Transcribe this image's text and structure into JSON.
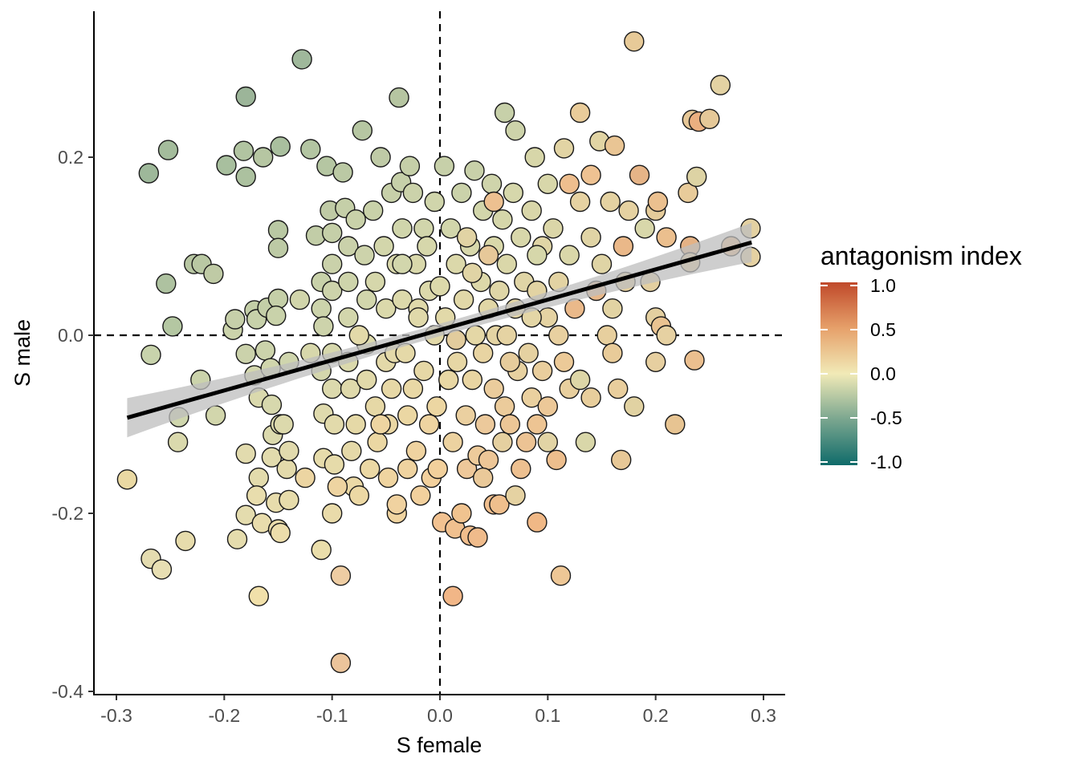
{
  "chart_data": {
    "type": "scatter",
    "title": "",
    "xlabel": "S female",
    "ylabel": "S male",
    "xlim": [
      -0.32,
      0.32
    ],
    "ylim": [
      -0.4,
      0.36
    ],
    "x_ticks": [
      "-0.3",
      "-0.2",
      "-0.1",
      "0.0",
      "0.1",
      "0.2",
      "0.3"
    ],
    "y_ticks": [
      "-0.4",
      "-0.2",
      "0.0",
      "0.2"
    ],
    "reference_lines": {
      "x": 0,
      "y": 0,
      "style": "dashed"
    },
    "grid": false,
    "regression": {
      "x_range": [
        -0.29,
        0.289
      ],
      "intercept": 0.006,
      "slope": 0.34,
      "ci_halfwidth_at_edges": 0.022,
      "ci_halfwidth_at_center": 0.007,
      "line_color": "#000000",
      "band_color": "#bebebe"
    },
    "colorbar": {
      "title": "antagonism index",
      "range": [
        -1.0,
        1.0
      ],
      "ticks": [
        "1.0",
        "0.5",
        "0.0",
        "-0.5",
        "-1.0"
      ],
      "stops": [
        {
          "v": -1.0,
          "color": "#0f6b6a"
        },
        {
          "v": -0.5,
          "color": "#7aa68f"
        },
        {
          "v": 0.0,
          "color": "#f1eab7"
        },
        {
          "v": 0.5,
          "color": "#e6a06a"
        },
        {
          "v": 1.0,
          "color": "#c0492a"
        }
      ],
      "placement": "right"
    },
    "points": [
      [
        -0.29,
        -0.162
      ],
      [
        -0.27,
        0.182
      ],
      [
        -0.268,
        -0.022
      ],
      [
        -0.268,
        -0.251
      ],
      [
        -0.258,
        -0.263
      ],
      [
        -0.252,
        0.208
      ],
      [
        -0.254,
        0.058
      ],
      [
        -0.248,
        0.01
      ],
      [
        -0.242,
        -0.092
      ],
      [
        -0.243,
        -0.12
      ],
      [
        -0.236,
        -0.231
      ],
      [
        -0.228,
        0.08
      ],
      [
        -0.221,
        0.08
      ],
      [
        -0.222,
        -0.05
      ],
      [
        -0.21,
        0.069
      ],
      [
        -0.208,
        -0.09
      ],
      [
        -0.198,
        0.191
      ],
      [
        -0.192,
        0.006
      ],
      [
        -0.19,
        0.018
      ],
      [
        -0.188,
        -0.229
      ],
      [
        -0.18,
        0.178
      ],
      [
        -0.18,
        0.268
      ],
      [
        -0.182,
        0.207
      ],
      [
        -0.18,
        -0.021
      ],
      [
        -0.18,
        -0.202
      ],
      [
        -0.18,
        -0.133
      ],
      [
        -0.172,
        0.028
      ],
      [
        -0.17,
        0.018
      ],
      [
        -0.172,
        -0.045
      ],
      [
        -0.168,
        -0.07
      ],
      [
        -0.168,
        -0.16
      ],
      [
        -0.17,
        -0.18
      ],
      [
        -0.168,
        -0.293
      ],
      [
        -0.164,
        0.2
      ],
      [
        -0.165,
        -0.211
      ],
      [
        -0.162,
        -0.017
      ],
      [
        -0.16,
        0.031
      ],
      [
        -0.157,
        -0.037
      ],
      [
        -0.156,
        -0.137
      ],
      [
        -0.156,
        -0.078
      ],
      [
        -0.155,
        -0.112
      ],
      [
        -0.148,
        0.212
      ],
      [
        -0.15,
        0.118
      ],
      [
        -0.15,
        0.098
      ],
      [
        -0.15,
        0.041
      ],
      [
        -0.152,
        0.022
      ],
      [
        -0.148,
        -0.1
      ],
      [
        -0.152,
        -0.188
      ],
      [
        -0.15,
        -0.218
      ],
      [
        -0.148,
        -0.222
      ],
      [
        -0.145,
        -0.1
      ],
      [
        -0.14,
        -0.185
      ],
      [
        -0.14,
        -0.03
      ],
      [
        -0.142,
        -0.15
      ],
      [
        -0.14,
        -0.13
      ],
      [
        -0.128,
        0.31
      ],
      [
        -0.12,
        0.209
      ],
      [
        -0.115,
        0.112
      ],
      [
        -0.11,
        0.06
      ],
      [
        -0.11,
        0.03
      ],
      [
        -0.11,
        -0.04
      ],
      [
        -0.108,
        -0.138
      ],
      [
        -0.11,
        -0.241
      ],
      [
        -0.108,
        0.01
      ],
      [
        -0.108,
        -0.088
      ],
      [
        -0.105,
        0.19
      ],
      [
        -0.102,
        0.14
      ],
      [
        -0.1,
        0.115
      ],
      [
        -0.1,
        0.08
      ],
      [
        -0.1,
        0.05
      ],
      [
        -0.1,
        -0.02
      ],
      [
        -0.1,
        -0.06
      ],
      [
        -0.098,
        -0.1
      ],
      [
        -0.098,
        -0.145
      ],
      [
        -0.1,
        -0.2
      ],
      [
        -0.092,
        -0.27
      ],
      [
        -0.092,
        -0.368
      ],
      [
        -0.09,
        0.183
      ],
      [
        -0.088,
        0.143
      ],
      [
        -0.085,
        0.1
      ],
      [
        -0.085,
        0.06
      ],
      [
        -0.085,
        0.02
      ],
      [
        -0.085,
        -0.03
      ],
      [
        -0.083,
        -0.06
      ],
      [
        -0.082,
        -0.13
      ],
      [
        -0.08,
        -0.17
      ],
      [
        -0.078,
        0.13
      ],
      [
        -0.078,
        -0.1
      ],
      [
        -0.075,
        -0.18
      ],
      [
        -0.072,
        0.23
      ],
      [
        -0.07,
        0.09
      ],
      [
        -0.068,
        0.04
      ],
      [
        -0.068,
        -0.01
      ],
      [
        -0.068,
        -0.05
      ],
      [
        -0.065,
        -0.15
      ],
      [
        -0.062,
        0.14
      ],
      [
        -0.06,
        0.06
      ],
      [
        -0.06,
        -0.08
      ],
      [
        -0.058,
        -0.12
      ],
      [
        -0.055,
        0.2
      ],
      [
        -0.052,
        0.1
      ],
      [
        -0.05,
        0.03
      ],
      [
        -0.05,
        -0.03
      ],
      [
        -0.048,
        -0.1
      ],
      [
        -0.048,
        -0.16
      ],
      [
        -0.045,
        0.16
      ],
      [
        -0.045,
        -0.06
      ],
      [
        -0.042,
        -0.02
      ],
      [
        -0.04,
        0.08
      ],
      [
        -0.04,
        -0.2
      ],
      [
        -0.04,
        -0.19
      ],
      [
        -0.038,
        0.267
      ],
      [
        -0.036,
        0.172
      ],
      [
        -0.035,
        0.12
      ],
      [
        -0.035,
        0.04
      ],
      [
        -0.032,
        -0.02
      ],
      [
        -0.03,
        -0.09
      ],
      [
        -0.03,
        -0.15
      ],
      [
        -0.028,
        0.19
      ],
      [
        -0.025,
        0.16
      ],
      [
        -0.025,
        -0.06
      ],
      [
        -0.022,
        0.08
      ],
      [
        -0.022,
        -0.13
      ],
      [
        -0.02,
        0.03
      ],
      [
        -0.018,
        -0.18
      ],
      [
        -0.015,
        0.12
      ],
      [
        -0.015,
        -0.04
      ],
      [
        -0.012,
        0.1
      ],
      [
        -0.01,
        0.05
      ],
      [
        -0.01,
        -0.1
      ],
      [
        -0.008,
        -0.16
      ],
      [
        -0.005,
        0.0
      ],
      [
        -0.005,
        0.15
      ],
      [
        -0.003,
        -0.08
      ],
      [
        -0.002,
        -0.15
      ],
      [
        -0.12,
        -0.02
      ],
      [
        -0.13,
        0.04
      ],
      [
        -0.125,
        -0.16
      ],
      [
        -0.095,
        -0.17
      ],
      [
        -0.075,
        0.0
      ],
      [
        -0.055,
        -0.1
      ],
      [
        -0.02,
        0.02
      ],
      [
        -0.035,
        0.08
      ],
      [
        0.0,
        0.055
      ],
      [
        0.002,
        -0.21
      ],
      [
        0.004,
        0.19
      ],
      [
        0.005,
        0.02
      ],
      [
        0.008,
        -0.05
      ],
      [
        0.01,
        0.12
      ],
      [
        0.012,
        -0.293
      ],
      [
        0.012,
        -0.12
      ],
      [
        0.014,
        -0.217
      ],
      [
        0.015,
        0.08
      ],
      [
        0.016,
        -0.03
      ],
      [
        0.02,
        0.16
      ],
      [
        0.02,
        -0.2
      ],
      [
        0.022,
        0.04
      ],
      [
        0.024,
        -0.09
      ],
      [
        0.025,
        -0.15
      ],
      [
        0.028,
        0.1
      ],
      [
        0.028,
        -0.225
      ],
      [
        0.03,
        -0.05
      ],
      [
        0.032,
        0.185
      ],
      [
        0.033,
        0.0
      ],
      [
        0.035,
        -0.135
      ],
      [
        0.035,
        -0.227
      ],
      [
        0.038,
        0.06
      ],
      [
        0.04,
        0.14
      ],
      [
        0.04,
        -0.02
      ],
      [
        0.042,
        -0.1
      ],
      [
        0.045,
        0.03
      ],
      [
        0.045,
        -0.14
      ],
      [
        0.048,
        0.17
      ],
      [
        0.05,
        -0.06
      ],
      [
        0.05,
        0.1
      ],
      [
        0.05,
        -0.19
      ],
      [
        0.052,
        0.0
      ],
      [
        0.055,
        0.05
      ],
      [
        0.055,
        -0.19
      ],
      [
        0.058,
        0.13
      ],
      [
        0.06,
        -0.08
      ],
      [
        0.06,
        0.25
      ],
      [
        0.062,
        0.0
      ],
      [
        0.062,
        0.08
      ],
      [
        0.065,
        -0.1
      ],
      [
        0.068,
        0.16
      ],
      [
        0.07,
        0.23
      ],
      [
        0.07,
        0.03
      ],
      [
        0.072,
        -0.04
      ],
      [
        0.075,
        0.11
      ],
      [
        0.075,
        -0.15
      ],
      [
        0.078,
        0.06
      ],
      [
        0.08,
        -0.12
      ],
      [
        0.082,
        -0.02
      ],
      [
        0.085,
        0.14
      ],
      [
        0.085,
        -0.07
      ],
      [
        0.088,
        0.2
      ],
      [
        0.09,
        0.05
      ],
      [
        0.09,
        -0.1
      ],
      [
        0.09,
        -0.21
      ],
      [
        0.095,
        0.1
      ],
      [
        0.095,
        -0.04
      ],
      [
        0.1,
        0.17
      ],
      [
        0.1,
        0.02
      ],
      [
        0.1,
        -0.08
      ],
      [
        0.105,
        0.12
      ],
      [
        0.108,
        -0.14
      ],
      [
        0.11,
        0.06
      ],
      [
        0.11,
        0.0
      ],
      [
        0.112,
        -0.27
      ],
      [
        0.115,
        0.21
      ],
      [
        0.115,
        -0.03
      ],
      [
        0.12,
        0.09
      ],
      [
        0.12,
        -0.06
      ],
      [
        0.125,
        0.03
      ],
      [
        0.13,
        0.15
      ],
      [
        0.13,
        0.25
      ],
      [
        0.13,
        -0.05
      ],
      [
        0.135,
        -0.12
      ],
      [
        0.14,
        0.11
      ],
      [
        0.14,
        -0.07
      ],
      [
        0.145,
        0.05
      ],
      [
        0.148,
        0.218
      ],
      [
        0.15,
        0.08
      ],
      [
        0.155,
        0.0
      ],
      [
        0.158,
        0.15
      ],
      [
        0.16,
        -0.02
      ],
      [
        0.16,
        0.03
      ],
      [
        0.162,
        0.213
      ],
      [
        0.165,
        -0.06
      ],
      [
        0.168,
        -0.14
      ],
      [
        0.17,
        0.1
      ],
      [
        0.172,
        0.06
      ],
      [
        0.175,
        0.14
      ],
      [
        0.18,
        -0.08
      ],
      [
        0.18,
        0.33
      ],
      [
        0.185,
        0.18
      ],
      [
        0.19,
        0.12
      ],
      [
        0.195,
        0.06
      ],
      [
        0.2,
        0.14
      ],
      [
        0.2,
        0.02
      ],
      [
        0.2,
        -0.03
      ],
      [
        0.202,
        0.15
      ],
      [
        0.205,
        0.01
      ],
      [
        0.21,
        0.0
      ],
      [
        0.21,
        0.11
      ],
      [
        0.218,
        -0.1
      ],
      [
        0.23,
        0.16
      ],
      [
        0.232,
        0.1
      ],
      [
        0.232,
        0.082
      ],
      [
        0.234,
        0.242
      ],
      [
        0.236,
        -0.028
      ],
      [
        0.238,
        0.178
      ],
      [
        0.24,
        0.24
      ],
      [
        0.25,
        0.243
      ],
      [
        0.26,
        0.281
      ],
      [
        0.27,
        0.1
      ],
      [
        0.288,
        0.12
      ],
      [
        0.288,
        0.088
      ],
      [
        0.015,
        -0.005
      ],
      [
        0.045,
        0.09
      ],
      [
        0.065,
        -0.03
      ],
      [
        0.085,
        0.02
      ],
      [
        0.025,
        0.11
      ],
      [
        0.04,
        -0.16
      ],
      [
        0.07,
        -0.18
      ],
      [
        0.1,
        -0.12
      ],
      [
        0.12,
        0.17
      ],
      [
        0.14,
        0.18
      ],
      [
        0.05,
        0.15
      ],
      [
        0.03,
        0.07
      ],
      [
        0.058,
        -0.12
      ],
      [
        0.09,
        0.09
      ]
    ],
    "colors": [
      "#ead9a3",
      "#9eb89a",
      "#c8d3ac",
      "#e4dcb0",
      "#e8dfb3",
      "#a4bc9c",
      "#aec2a0",
      "#b4c7a2",
      "#cfd6ad",
      "#dad9ad",
      "#e7dcac",
      "#b7c6a2",
      "#b9c8a3",
      "#cbd3ab",
      "#bfcaa5",
      "#d2d6ac",
      "#a8bf9e",
      "#cbd3ab",
      "#c6cfa9",
      "#e5dcad",
      "#acc19f",
      "#9cb599",
      "#b1c4a1",
      "#cbd2ab",
      "#e4dcae",
      "#e2dbae",
      "#c3cea7",
      "#c7d1aa",
      "#d3d7ad",
      "#dad9ad",
      "#e3dbac",
      "#e8ddad",
      "#f1e0aa",
      "#b6c6a2",
      "#e8dcac",
      "#ccd3ab",
      "#c3cea7",
      "#d0d5ac",
      "#e2dbad",
      "#d7d8ad",
      "#dbd9ad",
      "#a9bf9e",
      "#b9c8a3",
      "#bdcaa5",
      "#c5cfa8",
      "#c9d2aa",
      "#dbd9ad",
      "#e7dcac",
      "#eadcab",
      "#ecddab",
      "#dcd9ac",
      "#e7dcab",
      "#cfd5ad",
      "#e3daab",
      "#e1daad",
      "#9fb89b",
      "#b3c5a2",
      "#c2cda7",
      "#c8d1a9",
      "#ccd3ab",
      "#d4d6ac",
      "#e6dcab",
      "#eadeab",
      "#cdd3ab",
      "#dfdaad",
      "#b5c6a2",
      "#bfcaa5",
      "#c5cfa8",
      "#cad1aa",
      "#cdd3ab",
      "#d6d7ac",
      "#dcd9ad",
      "#e2daab",
      "#e6dbaa",
      "#e9dbaa",
      "#eecda3",
      "#ebc49b",
      "#bbc9a4",
      "#c5cfa8",
      "#cad1aa",
      "#ced4ab",
      "#d3d6ac",
      "#dbd9ac",
      "#dfd9ab",
      "#e5d9a8",
      "#ebd9a6",
      "#c9d1a9",
      "#e5d9a7",
      "#ecd8a4",
      "#b6c6a2",
      "#cdd3ab",
      "#d2d6ac",
      "#dbd9ab",
      "#e1d9aa",
      "#ebd8a4",
      "#c9d1a9",
      "#d6d7ab",
      "#e6d8a6",
      "#ebd7a3",
      "#bfcaa6",
      "#d3d6ab",
      "#dbd9ab",
      "#e3d9a9",
      "#ead7a4",
      "#efd4a0",
      "#c7d0a9",
      "#e7d8a6",
      "#e3d9aa",
      "#d9d8ab",
      "#f0d4a0",
      "#f0d2a0",
      "#b6c5a1",
      "#c6d0a9",
      "#d0d5ab",
      "#dcd9ab",
      "#e5d9a8",
      "#ebd7a3",
      "#efd3a0",
      "#c5cfa8",
      "#cbd2aa",
      "#e9d8a5",
      "#d9d8ab",
      "#efd3a0",
      "#dfd9aa",
      "#f2d09d",
      "#d1d5ab",
      "#e6d8a6",
      "#d6d7ab",
      "#dcd9ab",
      "#eed4a1",
      "#f2d09d",
      "#e2d9a9",
      "#d0d5ab",
      "#ecd6a2",
      "#f2d09c",
      "#d7d7ab",
      "#d1d5ab",
      "#ecd5a2",
      "#eed4a1",
      "#e2d9a9",
      "#eed5a1",
      "#e0d9aa",
      "#d2d6ac",
      "#dcd9ab",
      "#f2c291",
      "#c7d0a9",
      "#e2d9a9",
      "#e8d7a4",
      "#d2d6ab",
      "#f1b687",
      "#ecd2a0",
      "#f0c08f",
      "#dbd8aa",
      "#e7d7a5",
      "#cbd2aa",
      "#f0c38f",
      "#e1d8a8",
      "#ebd0a0",
      "#eec89a",
      "#d8d8ab",
      "#f0bd8c",
      "#e9d5a2",
      "#c8d0a9",
      "#e4d7a6",
      "#edcb9b",
      "#efbb8b",
      "#ddd8a9",
      "#d2d6ab",
      "#e8d4a2",
      "#ecc99b",
      "#e1d6a6",
      "#edc697",
      "#cfd4ab",
      "#ebcc9c",
      "#d9d8aa",
      "#efbe8e",
      "#e4d4a3",
      "#dfd6a7",
      "#efbf8d",
      "#d5d6aa",
      "#ebcb9b",
      "#c7d0a9",
      "#e5d3a3",
      "#dad7a9",
      "#ecc696",
      "#d6d7ab",
      "#cdd3aa",
      "#e2d4a5",
      "#e7d1a0",
      "#d8d7aa",
      "#edc090",
      "#e0d5a6",
      "#ecc394",
      "#e5d1a1",
      "#d9d6a9",
      "#ead09f",
      "#d7d6a9",
      "#e2d3a3",
      "#edc493",
      "#f0b886",
      "#e0d5a6",
      "#e9ce9d",
      "#d8d7aa",
      "#e5d3a3",
      "#ecc898",
      "#dbd6a8",
      "#edbe8d",
      "#e3d3a3",
      "#e8d0a0",
      "#eec796",
      "#e2d4a4",
      "#ecca98",
      "#dad7a9",
      "#e8cf9e",
      "#eab98a",
      "#e6d2a2",
      "#e9cc9a",
      "#ddd6a7",
      "#d9d7a9",
      "#e0d4a5",
      "#e8ce9c",
      "#e8b88a",
      "#e1d4a4",
      "#dfd4a5",
      "#e7cf9e",
      "#e4d2a2",
      "#e8cb99",
      "#e2d3a3",
      "#e9c594",
      "#e9ce9d",
      "#e7c897",
      "#eab889",
      "#e4cf9f",
      "#e5d1a1",
      "#e1d2a2",
      "#e7ca98",
      "#e6b487",
      "#d8d7aa",
      "#e3cfa0",
      "#e5cc9b",
      "#e3cfa0",
      "#e6cfa0",
      "#ebc08f",
      "#eac391",
      "#e6d1a2",
      "#ebbf8e",
      "#e7c492",
      "#e8cb9a",
      "#e5b285",
      "#e3c99a",
      "#e6c797",
      "#ebbf8f",
      "#ddd3a4",
      "#ebaf80",
      "#e5c898",
      "#e3d2a3",
      "#e9bd8c",
      "#e3d1a2",
      "#e5d1a2",
      "#e2cc9d",
      "#e6c899",
      "#e6cc9c",
      "#e4d6a6",
      "#e1d3a4",
      "#eac999",
      "#e5d2a2",
      "#e2d4a5",
      "#eebe8e",
      "#eec292",
      "#edc090",
      "#e0d4a5",
      "#e5d0a0",
      "#d6d7aa",
      "#e8cb9b",
      "#dcd6a8",
      "#ebc595"
    ]
  }
}
